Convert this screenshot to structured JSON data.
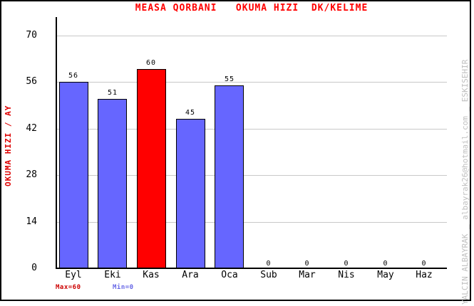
{
  "chart_data": {
    "type": "bar",
    "title": "MEASA QORBANI   OKUMA HIZI  DK/KELIME",
    "ylabel": "OKUMA HIZI / AY",
    "categories": [
      "Eyl",
      "Eki",
      "Kas",
      "Ara",
      "Oca",
      "Sub",
      "Mar",
      "Nis",
      "May",
      "Haz"
    ],
    "values": [
      56,
      51,
      60,
      45,
      55,
      0,
      0,
      0,
      0,
      0
    ],
    "bar_colors": [
      "#6666ff",
      "#6666ff",
      "#ff0000",
      "#6666ff",
      "#6666ff",
      "#6666ff",
      "#6666ff",
      "#6666ff",
      "#6666ff",
      "#6666ff"
    ],
    "value_labels": [
      "56",
      "51",
      "60",
      "45",
      "55",
      "0",
      "0",
      "0",
      "0",
      "0"
    ],
    "yticks": [
      0,
      14,
      28,
      42,
      56,
      70
    ],
    "ylim": [
      0,
      75.6
    ],
    "grid": true,
    "legend_position": "none"
  },
  "footer": {
    "max_label": "Max=60",
    "min_label": "Min=0"
  },
  "watermark": {
    "text": "YALCIN ALBAYRAK _ albayrak26@hotmail.com _ ESKISEHIR"
  },
  "colors": {
    "title": "#ff0000",
    "ylabel": "#dd0000",
    "axis": "#000000",
    "grid": "#c8c8c8",
    "bar_blue": "#6666ff",
    "bar_red": "#ff0000",
    "max_label": "#cc0000",
    "min_label": "#6666e6",
    "watermark": "#bfbfbf"
  }
}
